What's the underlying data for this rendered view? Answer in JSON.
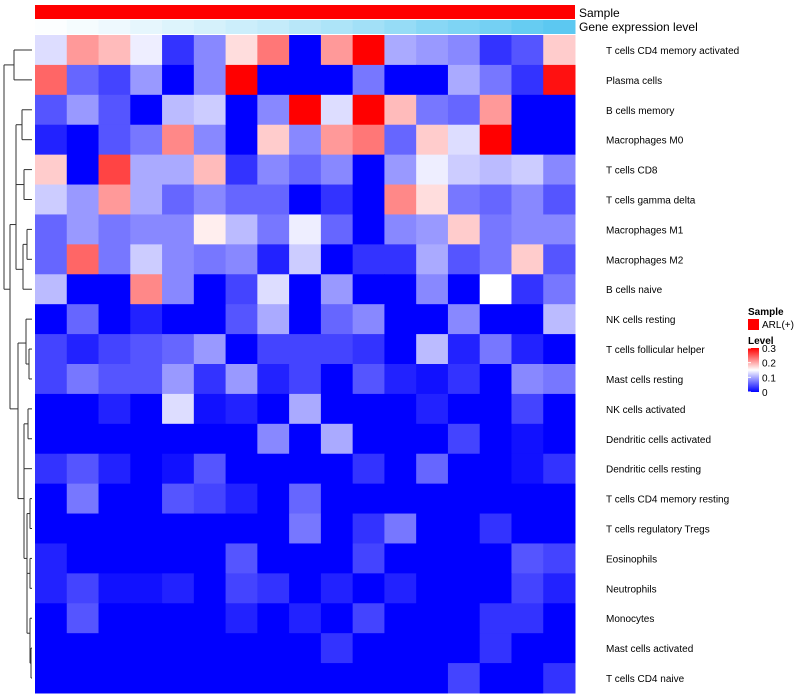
{
  "chart_data": {
    "type": "heatmap",
    "annotation_tracks": [
      {
        "name": "Sample"
      },
      {
        "name": "Gene expression level"
      }
    ],
    "legend": {
      "sample_title": "Sample",
      "sample_item": "ARL(+)",
      "sample_color": "#ff0000",
      "level_title": "Level",
      "level_ticks": [
        "0.3",
        "0.2",
        "0.1",
        "0"
      ],
      "level_tick_values": [
        0.3,
        0.2,
        0.1,
        0
      ],
      "scale_min": 0,
      "scale_max": 0.3,
      "low_color": "#0000ff",
      "mid_color": "#ffffff",
      "high_color": "#ff0000",
      "gene_track_low_color": "#ffffff",
      "gene_track_high_color": "#55c6f0"
    },
    "gene_expression_level": [
      0.02,
      0.06,
      0.1,
      0.15,
      0.2,
      0.25,
      0.3,
      0.35,
      0.42,
      0.48,
      0.55,
      0.62,
      0.7,
      0.76,
      0.82,
      0.9,
      0.96
    ],
    "rows": [
      "T cells CD4 memory activated",
      "Plasma cells",
      "B cells memory",
      "Macrophages M0",
      "T cells CD8",
      "T cells gamma delta",
      "Macrophages M1",
      "Macrophages M2",
      "B cells naive",
      "NK cells resting",
      "T cells follicular helper",
      "Mast cells resting",
      "NK cells activated",
      "Dendritic cells activated",
      "Dendritic cells resting",
      "T cells CD4 memory resting",
      "T cells regulatory  Tregs",
      "Eosinophils",
      "Neutrophils",
      "Monocytes",
      "Mast cells activated",
      "T cells CD4 naive"
    ],
    "values": [
      [
        0.13,
        0.21,
        0.19,
        0.14,
        0.03,
        0.08,
        0.17,
        0.23,
        0.0,
        0.21,
        0.3,
        0.1,
        0.09,
        0.08,
        0.03,
        0.05,
        0.18
      ],
      [
        0.24,
        0.06,
        0.04,
        0.09,
        0.0,
        0.08,
        0.3,
        0.0,
        0.0,
        0.0,
        0.07,
        0.0,
        0.0,
        0.1,
        0.07,
        0.03,
        0.29
      ],
      [
        0.05,
        0.09,
        0.05,
        0.0,
        0.11,
        0.12,
        0.0,
        0.08,
        0.3,
        0.13,
        0.3,
        0.19,
        0.07,
        0.06,
        0.21,
        0.0,
        0.0
      ],
      [
        0.02,
        0.0,
        0.05,
        0.07,
        0.22,
        0.08,
        0.0,
        0.18,
        0.08,
        0.21,
        0.23,
        0.06,
        0.18,
        0.13,
        0.3,
        0.0,
        0.0
      ],
      [
        0.18,
        0.0,
        0.26,
        0.1,
        0.1,
        0.19,
        0.03,
        0.08,
        0.06,
        0.08,
        0.0,
        0.09,
        0.14,
        0.12,
        0.11,
        0.12,
        0.08
      ],
      [
        0.12,
        0.09,
        0.21,
        0.1,
        0.06,
        0.08,
        0.06,
        0.06,
        0.0,
        0.03,
        0.0,
        0.22,
        0.17,
        0.07,
        0.06,
        0.08,
        0.05
      ],
      [
        0.06,
        0.09,
        0.07,
        0.08,
        0.08,
        0.16,
        0.11,
        0.07,
        0.14,
        0.06,
        0.0,
        0.08,
        0.09,
        0.18,
        0.07,
        0.08,
        0.08
      ],
      [
        0.06,
        0.24,
        0.07,
        0.12,
        0.08,
        0.07,
        0.08,
        0.02,
        0.12,
        0.0,
        0.03,
        0.03,
        0.1,
        0.05,
        0.07,
        0.18,
        0.05
      ],
      [
        0.11,
        0.0,
        0.0,
        0.22,
        0.08,
        0.0,
        0.04,
        0.13,
        0.0,
        0.09,
        0.0,
        0.0,
        0.08,
        0.0,
        0.15,
        0.03,
        0.07
      ],
      [
        0.0,
        0.06,
        0.0,
        0.02,
        0.0,
        0.0,
        0.05,
        0.1,
        0.0,
        0.06,
        0.08,
        0.0,
        0.0,
        0.08,
        0.0,
        0.0,
        0.11
      ],
      [
        0.04,
        0.02,
        0.04,
        0.05,
        0.06,
        0.09,
        0.0,
        0.04,
        0.04,
        0.04,
        0.03,
        0.0,
        0.11,
        0.02,
        0.07,
        0.02,
        0.0
      ],
      [
        0.04,
        0.07,
        0.05,
        0.05,
        0.09,
        0.03,
        0.09,
        0.02,
        0.04,
        0.0,
        0.05,
        0.02,
        0.01,
        0.03,
        0.0,
        0.08,
        0.07
      ],
      [
        0.0,
        0.0,
        0.02,
        0.0,
        0.13,
        0.01,
        0.02,
        0.0,
        0.1,
        0.0,
        0.0,
        0.0,
        0.02,
        0.0,
        0.0,
        0.04,
        0.0
      ],
      [
        0.0,
        0.0,
        0.0,
        0.0,
        0.0,
        0.0,
        0.0,
        0.08,
        0.0,
        0.1,
        0.0,
        0.0,
        0.0,
        0.04,
        0.0,
        0.01,
        0.0
      ],
      [
        0.03,
        0.05,
        0.02,
        0.0,
        0.01,
        0.05,
        0.0,
        0.0,
        0.0,
        0.0,
        0.03,
        0.0,
        0.06,
        0.0,
        0.0,
        0.01,
        0.03
      ],
      [
        0.0,
        0.07,
        0.0,
        0.0,
        0.05,
        0.04,
        0.02,
        0.0,
        0.06,
        0.0,
        0.0,
        0.0,
        0.0,
        0.0,
        0.0,
        0.0,
        0.0
      ],
      [
        0.0,
        0.0,
        0.0,
        0.0,
        0.0,
        0.0,
        0.0,
        0.0,
        0.07,
        0.0,
        0.03,
        0.07,
        0.0,
        0.0,
        0.03,
        0.0,
        0.0
      ],
      [
        0.02,
        0.0,
        0.0,
        0.0,
        0.0,
        0.0,
        0.05,
        0.0,
        0.0,
        0.0,
        0.04,
        0.0,
        0.0,
        0.0,
        0.0,
        0.05,
        0.04
      ],
      [
        0.02,
        0.04,
        0.01,
        0.01,
        0.02,
        0.0,
        0.04,
        0.03,
        0.0,
        0.02,
        0.0,
        0.02,
        0.0,
        0.0,
        0.0,
        0.04,
        0.02
      ],
      [
        0.0,
        0.05,
        0.0,
        0.0,
        0.0,
        0.0,
        0.02,
        0.0,
        0.02,
        0.0,
        0.04,
        0.0,
        0.0,
        0.0,
        0.03,
        0.03,
        0.0
      ],
      [
        0.0,
        0.0,
        0.0,
        0.0,
        0.0,
        0.0,
        0.0,
        0.0,
        0.0,
        0.03,
        0.0,
        0.0,
        0.0,
        0.0,
        0.03,
        0.0,
        0.0
      ],
      [
        0.0,
        0.0,
        0.0,
        0.0,
        0.0,
        0.0,
        0.0,
        0.0,
        0.0,
        0.0,
        0.0,
        0.0,
        0.0,
        0.04,
        0.0,
        0.0,
        0.03
      ]
    ]
  }
}
